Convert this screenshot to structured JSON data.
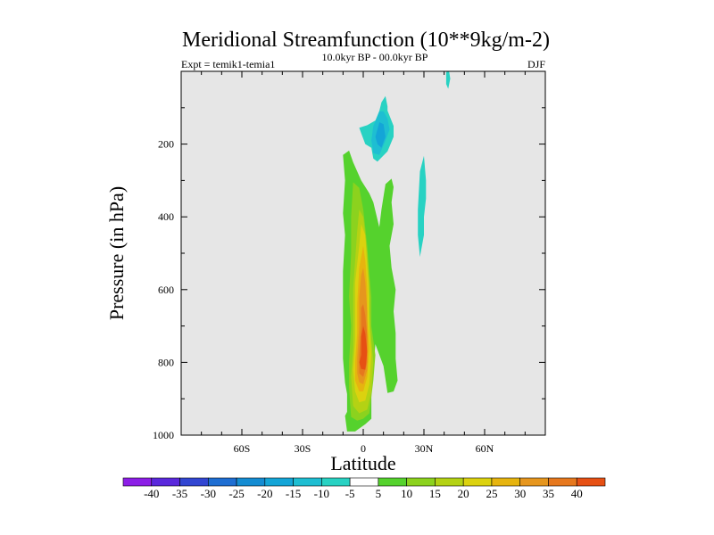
{
  "chart_data": {
    "type": "contour",
    "title": "Meridional Streamfunction (10**9kg/m-2)",
    "left_label": "Expt = temik1-temia1",
    "center_label": "10.0kyr BP - 00.0kyr BP",
    "right_label": "DJF",
    "xlabel": "Latitude",
    "ylabel": "Pressure (in hPa)",
    "xlim": [
      -90,
      90
    ],
    "ylim": [
      1000,
      0
    ],
    "x_ticks": [
      {
        "value": -60,
        "label": "60S"
      },
      {
        "value": -30,
        "label": "30S"
      },
      {
        "value": 0,
        "label": "0"
      },
      {
        "value": 30,
        "label": "30N"
      },
      {
        "value": 60,
        "label": "60N"
      }
    ],
    "y_ticks": [
      {
        "value": 200,
        "label": "200"
      },
      {
        "value": 400,
        "label": "400"
      },
      {
        "value": 600,
        "label": "600"
      },
      {
        "value": 800,
        "label": "800"
      },
      {
        "value": 1000,
        "label": "1000"
      }
    ],
    "colorbar": {
      "levels": [
        -40,
        -35,
        -30,
        -25,
        -20,
        -15,
        -10,
        -5,
        5,
        10,
        15,
        20,
        25,
        30,
        35,
        40
      ],
      "labels": [
        "-40",
        "-35",
        "-30",
        "-25",
        "-20",
        "-15",
        "-10",
        "-5",
        "5",
        "10",
        "15",
        "20",
        "25",
        "30",
        "35",
        "40"
      ],
      "colors": [
        "#8c1ee6",
        "#5a28dc",
        "#3246d2",
        "#1e6ed2",
        "#148cd2",
        "#14a5d7",
        "#1ebed2",
        "#28d2c3",
        "#ffffff",
        "#55d22d",
        "#8cd21e",
        "#b4d214",
        "#dcd20f",
        "#e6b40f",
        "#e6961e",
        "#e6781e",
        "#e65014"
      ]
    },
    "background_color": "#e6e6e6",
    "regions": [
      {
        "level": 5,
        "color": "#55d22d",
        "points": [
          [
            -9,
            947
          ],
          [
            -8,
            936
          ],
          [
            -8,
            887
          ],
          [
            -9,
            856
          ],
          [
            -10,
            790
          ],
          [
            -10,
            660
          ],
          [
            -10,
            550
          ],
          [
            -9,
            450
          ],
          [
            -10,
            390
          ],
          [
            -9,
            300
          ],
          [
            -10,
            230
          ],
          [
            -7,
            218
          ],
          [
            -5,
            250
          ],
          [
            -1,
            300
          ],
          [
            3,
            335
          ],
          [
            5,
            360
          ],
          [
            8,
            430
          ],
          [
            7,
            470
          ],
          [
            9,
            380
          ],
          [
            11,
            310
          ],
          [
            14,
            295
          ],
          [
            15,
            318
          ],
          [
            14,
            360
          ],
          [
            15,
            420
          ],
          [
            13,
            480
          ],
          [
            14,
            540
          ],
          [
            16,
            600
          ],
          [
            15,
            660
          ],
          [
            16,
            720
          ],
          [
            16,
            790
          ],
          [
            17,
            850
          ],
          [
            15,
            880
          ],
          [
            12,
            884
          ],
          [
            10,
            810
          ],
          [
            6,
            750
          ],
          [
            4,
            880
          ],
          [
            4,
            955
          ],
          [
            1,
            970
          ],
          [
            -4,
            990
          ],
          [
            -8,
            990
          ]
        ]
      },
      {
        "level": 10,
        "color": "#8cd21e",
        "points": [
          [
            -7,
            870
          ],
          [
            -7,
            800
          ],
          [
            -6,
            700
          ],
          [
            -7,
            620
          ],
          [
            -6,
            500
          ],
          [
            -6,
            400
          ],
          [
            -5,
            305
          ],
          [
            -2,
            320
          ],
          [
            0,
            380
          ],
          [
            2,
            480
          ],
          [
            3,
            560
          ],
          [
            4,
            620
          ],
          [
            4,
            700
          ],
          [
            6,
            780
          ],
          [
            5,
            850
          ],
          [
            3,
            940
          ],
          [
            0,
            955
          ],
          [
            -3,
            960
          ],
          [
            -6,
            950
          ]
        ]
      },
      {
        "level": 15,
        "color": "#b4d214",
        "points": [
          [
            -6,
            840
          ],
          [
            -5,
            760
          ],
          [
            -5,
            680
          ],
          [
            -5,
            600
          ],
          [
            -4,
            520
          ],
          [
            -3,
            440
          ],
          [
            -2,
            380
          ],
          [
            0,
            400
          ],
          [
            2,
            500
          ],
          [
            3,
            580
          ],
          [
            3,
            660
          ],
          [
            4,
            740
          ],
          [
            5,
            800
          ],
          [
            4,
            880
          ],
          [
            2,
            930
          ],
          [
            -2,
            940
          ],
          [
            -5,
            920
          ]
        ]
      },
      {
        "level": 20,
        "color": "#dcd20f",
        "points": [
          [
            -5,
            820
          ],
          [
            -4,
            740
          ],
          [
            -4,
            660
          ],
          [
            -4,
            580
          ],
          [
            -2,
            480
          ],
          [
            -1,
            420
          ],
          [
            1,
            450
          ],
          [
            2,
            540
          ],
          [
            3,
            620
          ],
          [
            3,
            700
          ],
          [
            4,
            780
          ],
          [
            3,
            860
          ],
          [
            1,
            905
          ],
          [
            -2,
            910
          ],
          [
            -4,
            880
          ]
        ]
      },
      {
        "level": 25,
        "color": "#e6b40f",
        "points": [
          [
            -4,
            800
          ],
          [
            -3,
            720
          ],
          [
            -3,
            640
          ],
          [
            -2,
            540
          ],
          [
            0,
            480
          ],
          [
            1,
            520
          ],
          [
            2,
            600
          ],
          [
            2,
            680
          ],
          [
            3,
            760
          ],
          [
            2,
            840
          ],
          [
            0,
            880
          ],
          [
            -2,
            880
          ],
          [
            -4,
            850
          ]
        ]
      },
      {
        "level": 30,
        "color": "#e6961e",
        "points": [
          [
            -3,
            790
          ],
          [
            -2,
            700
          ],
          [
            -2,
            620
          ],
          [
            -1,
            560
          ],
          [
            0,
            540
          ],
          [
            1,
            580
          ],
          [
            2,
            660
          ],
          [
            2,
            740
          ],
          [
            2,
            820
          ],
          [
            0,
            860
          ],
          [
            -2,
            855
          ],
          [
            -3,
            830
          ]
        ]
      },
      {
        "level": 35,
        "color": "#e6781e",
        "points": [
          [
            -2,
            780
          ],
          [
            -1,
            700
          ],
          [
            -1,
            650
          ],
          [
            0,
            640
          ],
          [
            1,
            670
          ],
          [
            2,
            730
          ],
          [
            2,
            800
          ],
          [
            0,
            840
          ],
          [
            -2,
            830
          ]
        ]
      },
      {
        "level": 40,
        "color": "#e65014",
        "points": [
          [
            -1,
            780
          ],
          [
            -1,
            730
          ],
          [
            0,
            700
          ],
          [
            1,
            720
          ],
          [
            2,
            770
          ],
          [
            1,
            820
          ],
          [
            -1,
            818
          ],
          [
            -2,
            800
          ]
        ]
      },
      {
        "level": -5,
        "color": "#28d2c3",
        "points": [
          [
            -2,
            155
          ],
          [
            2,
            148
          ],
          [
            6,
            135
          ],
          [
            8,
            108
          ],
          [
            9,
            85
          ],
          [
            11,
            68
          ],
          [
            12,
            96
          ],
          [
            12,
            108
          ],
          [
            15,
            150
          ],
          [
            15,
            180
          ],
          [
            12,
            220
          ],
          [
            7,
            248
          ],
          [
            5,
            240
          ],
          [
            4,
            210
          ],
          [
            1,
            200
          ],
          [
            -1,
            170
          ]
        ]
      },
      {
        "level": -10,
        "color": "#1ebed2",
        "points": [
          [
            4,
            190
          ],
          [
            5,
            150
          ],
          [
            7,
            125
          ],
          [
            8,
            110
          ],
          [
            10,
            110
          ],
          [
            12,
            130
          ],
          [
            13,
            160
          ],
          [
            11,
            190
          ],
          [
            8,
            230
          ],
          [
            5,
            225
          ]
        ]
      },
      {
        "level": -15,
        "color": "#14a5d7",
        "points": [
          [
            6,
            180
          ],
          [
            8,
            140
          ],
          [
            10,
            145
          ],
          [
            11,
            180
          ],
          [
            9,
            210
          ],
          [
            7,
            200
          ]
        ]
      },
      {
        "level": -5,
        "color": "#28d2c3",
        "points": [
          [
            28,
            275
          ],
          [
            30,
            232
          ],
          [
            31,
            300
          ],
          [
            31,
            350
          ],
          [
            30,
            400
          ],
          [
            30,
            450
          ],
          [
            28,
            510
          ],
          [
            27,
            450
          ],
          [
            27,
            380
          ]
        ]
      },
      {
        "level": -5,
        "color": "#28d2c3",
        "points": [
          [
            41,
            5
          ],
          [
            42,
            -15
          ],
          [
            43,
            20
          ],
          [
            42,
            48
          ],
          [
            41,
            35
          ]
        ]
      }
    ]
  }
}
